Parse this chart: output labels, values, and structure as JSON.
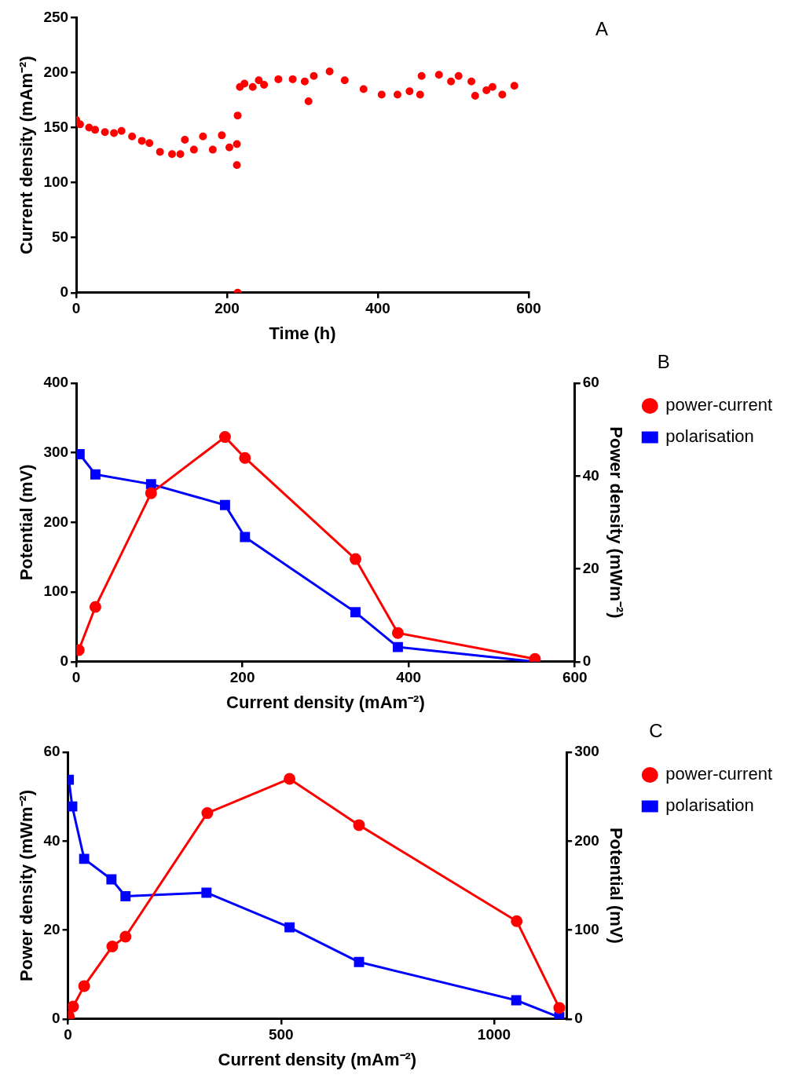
{
  "chart_data": [
    {
      "type": "scatter",
      "xlabel": "Time (h)",
      "ylabel": "Current density (mAm⁻²)",
      "annotations": [
        "A"
      ],
      "xlim": [
        0,
        600
      ],
      "xticks": [
        0,
        200,
        400,
        600
      ],
      "ylim": [
        0,
        250
      ],
      "yticks": [
        0,
        50,
        100,
        150,
        200,
        250
      ],
      "grid": false,
      "legend": false,
      "marker": "circle",
      "series": [
        {
          "color": "#ff0000",
          "x": [
            0,
            5,
            17,
            25,
            38,
            50,
            60,
            74,
            87,
            97,
            111,
            127,
            138,
            144,
            156,
            168,
            181,
            193,
            203,
            213,
            213,
            214,
            214,
            217,
            223,
            234,
            242,
            249,
            268,
            287,
            303,
            308,
            315,
            336,
            356,
            381,
            405,
            426,
            442,
            456,
            458,
            481,
            497,
            507,
            524,
            529,
            544,
            552,
            565,
            581
          ],
          "values": [
            157,
            153,
            150,
            148,
            146,
            145,
            147,
            142,
            138,
            136,
            128,
            126,
            126,
            139,
            130,
            142,
            130,
            143,
            132,
            135,
            116,
            161,
            0,
            187,
            190,
            187,
            193,
            189,
            194,
            194,
            192,
            174,
            197,
            201,
            193,
            185,
            180,
            180,
            183,
            180,
            197,
            198,
            192,
            197,
            192,
            179,
            184,
            187,
            180,
            188
          ]
        }
      ]
    },
    {
      "type": "line",
      "xlabel": "Current density (mAm⁻²)",
      "ylabel": "Potential (mV)",
      "y2label": "Power density (mWm⁻²)",
      "annotations": [
        "B"
      ],
      "xlim": [
        0,
        600
      ],
      "xticks": [
        0,
        200,
        400,
        600
      ],
      "ylim": [
        0,
        400
      ],
      "yticks": [
        0,
        100,
        200,
        300,
        400
      ],
      "y2lim": [
        0,
        60
      ],
      "y2ticks": [
        0,
        20,
        40,
        60
      ],
      "grid": false,
      "legend": "right",
      "series": [
        {
          "name": "power-current",
          "color": "#ff0000",
          "axis": "y2",
          "marker": "circle",
          "x": [
            3,
            23,
            90,
            179,
            203,
            336,
            387,
            552
          ],
          "values": [
            2.5,
            11.8,
            36.3,
            48.4,
            43.9,
            22.1,
            6.2,
            0.6
          ]
        },
        {
          "name": "polarisation",
          "color": "#0000ff",
          "axis": "y",
          "marker": "square",
          "x": [
            4,
            23,
            90,
            179,
            203,
            336,
            387,
            552
          ],
          "values": [
            298,
            269,
            255,
            225,
            179,
            71,
            21,
            0
          ]
        }
      ]
    },
    {
      "type": "line",
      "xlabel": "Current density (mAm⁻²)",
      "ylabel": "Power density (mWm⁻²)",
      "y2label": "Potential (mV)",
      "annotations": [
        "C"
      ],
      "xlim": [
        0,
        1170
      ],
      "xticks": [
        0,
        500,
        1000
      ],
      "ylim": [
        0,
        60
      ],
      "yticks": [
        0,
        20,
        40,
        60
      ],
      "y2lim": [
        0,
        300
      ],
      "y2ticks": [
        0,
        100,
        200,
        300
      ],
      "grid": false,
      "legend": "right",
      "series": [
        {
          "name": "power-current",
          "color": "#ff0000",
          "axis": "y",
          "marker": "circle",
          "x": [
            2,
            12,
            38,
            104,
            135,
            327,
            520,
            683,
            1053,
            1153
          ],
          "values": [
            0.6,
            2.8,
            7.4,
            16.3,
            18.5,
            46.3,
            54.0,
            43.6,
            22.0,
            2.5
          ]
        },
        {
          "name": "polarisation",
          "color": "#0000ff",
          "axis": "y2",
          "marker": "square",
          "x": [
            2,
            10,
            38,
            102,
            135,
            325,
            520,
            683,
            1052,
            1153
          ],
          "values": [
            269,
            239,
            180,
            157,
            138,
            142,
            103,
            64,
            21,
            2
          ]
        }
      ]
    }
  ]
}
